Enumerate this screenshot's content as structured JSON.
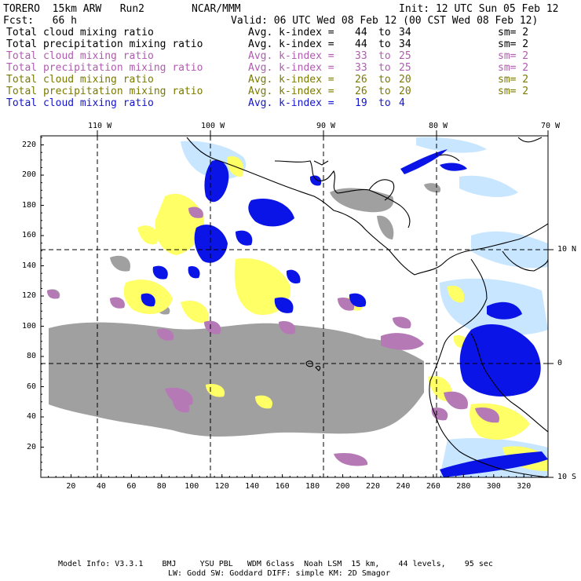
{
  "header": {
    "model": "TORERO  15km ARW   Run2",
    "center": "NCAR/MMM",
    "init": "Init: 12 UTC Sun 05 Feb 12",
    "fcst": "Fcst:   66 h",
    "valid": "Valid: 06 UTC Wed 08 Feb 12 (00 CST Wed 08 Feb 12)"
  },
  "legend": [
    {
      "label": "Total cloud mixing ratio",
      "kindex": "Avg. k-index =",
      "from": "44",
      "to": "34",
      "sm": "sm= 2",
      "color": "#000000"
    },
    {
      "label": "Total precipitation mixing ratio",
      "kindex": "Avg. k-index =",
      "from": "44",
      "to": "34",
      "sm": "sm= 2",
      "color": "#000000"
    },
    {
      "label": "Total cloud mixing ratio",
      "kindex": "Avg. k-index =",
      "from": "33",
      "to": "25",
      "sm": "sm= 2",
      "color": "#b05cb0"
    },
    {
      "label": "Total precipitation mixing ratio",
      "kindex": "Avg. k-index =",
      "from": "33",
      "to": "25",
      "sm": "sm= 2",
      "color": "#b05cb0"
    },
    {
      "label": "Total cloud mixing ratio",
      "kindex": "Avg. k-index =",
      "from": "26",
      "to": "20",
      "sm": "sm= 2",
      "color": "#7a7a00"
    },
    {
      "label": "Total precipitation mixing ratio",
      "kindex": "Avg. k-index =",
      "from": "26",
      "to": "20",
      "sm": "sm= 2",
      "color": "#7a7a00"
    },
    {
      "label": "Total cloud mixing ratio",
      "kindex": "Avg. k-index =",
      "from": "19",
      "to": "4",
      "sm": "",
      "color": "#1414d0"
    }
  ],
  "to_word": "to",
  "longitude_labels": [
    "110 W",
    "100 W",
    "90 W",
    "80 W",
    "70 W"
  ],
  "latitude_labels": [
    "10 N",
    "0",
    "10 S"
  ],
  "x_ticks": [
    "20",
    "40",
    "60",
    "80",
    "100",
    "120",
    "140",
    "160",
    "180",
    "200",
    "220",
    "240",
    "260",
    "280",
    "300",
    "320"
  ],
  "y_ticks": [
    "20",
    "40",
    "60",
    "80",
    "100",
    "120",
    "140",
    "160",
    "180",
    "200",
    "220"
  ],
  "colors": {
    "gray_field": "#a0a0a0",
    "purple_field": "#b57ab5",
    "yellow_field": "#ffff66",
    "blue_field": "#0a14e6",
    "lightblue_field": "#c8e6ff",
    "coastline": "#000000",
    "grid": "#000000"
  },
  "footer": {
    "line1": "Model Info: V3.3.1    BMJ     YSU PBL   WDM 6class  Noah LSM  15 km,    44 levels,    95 sec",
    "line2": "LW: Godd SW: Goddard DIFF: simple KM: 2D Smagor"
  }
}
